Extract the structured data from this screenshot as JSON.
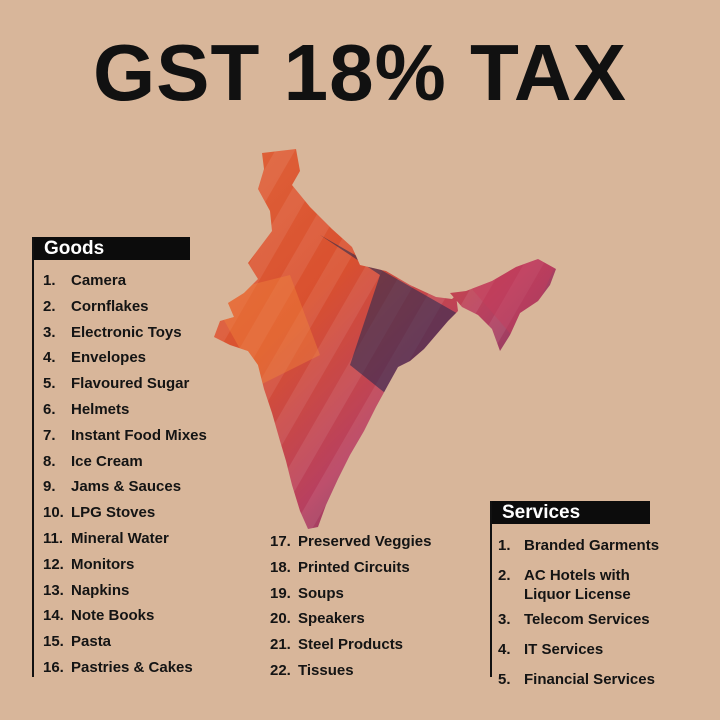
{
  "title": "GST 18% TAX",
  "colors": {
    "background": "#d8b69a",
    "header_bg": "#0c0c0c",
    "text": "#141414"
  },
  "goods": {
    "header": "Goods",
    "items": [
      {
        "num": "1.",
        "label": "Camera"
      },
      {
        "num": "2.",
        "label": "Cornflakes"
      },
      {
        "num": "3.",
        "label": "Electronic Toys"
      },
      {
        "num": "4.",
        "label": "Envelopes"
      },
      {
        "num": "5.",
        "label": "Flavoured Sugar"
      },
      {
        "num": "6.",
        "label": "Helmets"
      },
      {
        "num": "7.",
        "label": "Instant Food Mixes"
      },
      {
        "num": "8.",
        "label": "Ice Cream"
      },
      {
        "num": "9.",
        "label": "Jams & Sauces"
      },
      {
        "num": "10.",
        "label": "LPG Stoves"
      },
      {
        "num": "11.",
        "label": "Mineral Water"
      },
      {
        "num": "12.",
        "label": "Monitors"
      },
      {
        "num": "13.",
        "label": "Napkins"
      },
      {
        "num": "14.",
        "label": "Note Books"
      },
      {
        "num": "15.",
        "label": "Pasta"
      },
      {
        "num": "16.",
        "label": "Pastries & Cakes"
      }
    ],
    "more_items": [
      {
        "num": "17.",
        "label": "Preserved Veggies"
      },
      {
        "num": "18.",
        "label": "Printed Circuits"
      },
      {
        "num": "19.",
        "label": "Soups"
      },
      {
        "num": "20.",
        "label": "Speakers"
      },
      {
        "num": "21.",
        "label": "Steel Products"
      },
      {
        "num": "22.",
        "label": "Tissues"
      }
    ]
  },
  "services": {
    "header": "Services",
    "items": [
      {
        "num": "1.",
        "label": "Branded Garments"
      },
      {
        "num": "2.",
        "label": "AC Hotels with Liquor License"
      },
      {
        "num": "3.",
        "label": "Telecom Services"
      },
      {
        "num": "4.",
        "label": "IT Services"
      },
      {
        "num": "5.",
        "label": "Financial Services"
      }
    ]
  }
}
